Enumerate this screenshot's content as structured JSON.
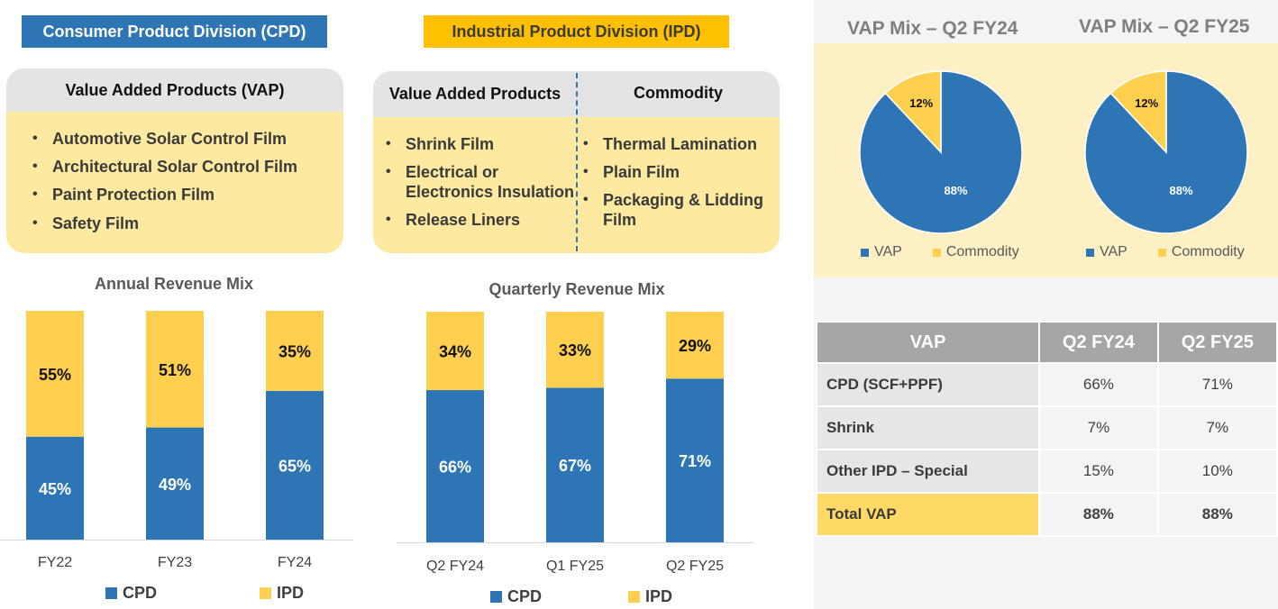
{
  "colors": {
    "cpd": "#2e75b6",
    "ipd": "#ffd04f",
    "vap_header": "#a6a6a6",
    "total_row": "#ffd966"
  },
  "divisions": {
    "cpd_label": "Consumer Product Division (CPD)",
    "ipd_label": "Industrial Product Division (IPD)"
  },
  "cpd_card": {
    "title": "Value Added Products (VAP)",
    "items": [
      "Automotive Solar Control Film",
      "Architectural Solar Control Film",
      "Paint Protection Film",
      "Safety Film"
    ]
  },
  "ipd_card": {
    "vap_title": "Value Added Products",
    "vap_items": [
      "Shrink Film",
      "Electrical or Electronics Insulation",
      "Release Liners"
    ],
    "commodity_title": "Commodity",
    "commodity_items": [
      "Thermal Lamination",
      "Plain Film",
      "Packaging & Lidding Film"
    ]
  },
  "legend": {
    "cpd": "CPD",
    "ipd": "IPD",
    "vap": "VAP",
    "commodity": "Commodity"
  },
  "vap_table": {
    "headers": [
      "VAP",
      "Q2 FY24",
      "Q2 FY25"
    ],
    "rows": [
      [
        "CPD (SCF+PPF)",
        "66%",
        "71%"
      ],
      [
        "Shrink",
        "7%",
        "7%"
      ],
      [
        "Other IPD – Special",
        "15%",
        "10%"
      ],
      [
        "Total VAP",
        "88%",
        "88%"
      ]
    ]
  },
  "chart_data": [
    {
      "type": "bar",
      "stacked": true,
      "title": "Annual Revenue Mix",
      "categories": [
        "FY22",
        "FY23",
        "FY24"
      ],
      "series": [
        {
          "name": "CPD",
          "values": [
            45,
            49,
            65
          ]
        },
        {
          "name": "IPD",
          "values": [
            55,
            51,
            35
          ]
        }
      ],
      "ylim": [
        0,
        100
      ],
      "legend_position": "bottom"
    },
    {
      "type": "bar",
      "stacked": true,
      "title": "Quarterly Revenue Mix",
      "categories": [
        "Q2 FY24",
        "Q1 FY25",
        "Q2 FY25"
      ],
      "series": [
        {
          "name": "CPD",
          "values": [
            66,
            67,
            71
          ]
        },
        {
          "name": "IPD",
          "values": [
            34,
            33,
            29
          ]
        }
      ],
      "ylim": [
        0,
        100
      ],
      "legend_position": "bottom"
    },
    {
      "type": "pie",
      "title": "VAP Mix – Q2 FY24",
      "labels": [
        "VAP",
        "Commodity"
      ],
      "values": [
        88,
        12
      ],
      "legend_position": "bottom"
    },
    {
      "type": "pie",
      "title": "VAP Mix – Q2 FY25",
      "labels": [
        "VAP",
        "Commodity"
      ],
      "values": [
        88,
        12
      ],
      "legend_position": "bottom"
    }
  ]
}
